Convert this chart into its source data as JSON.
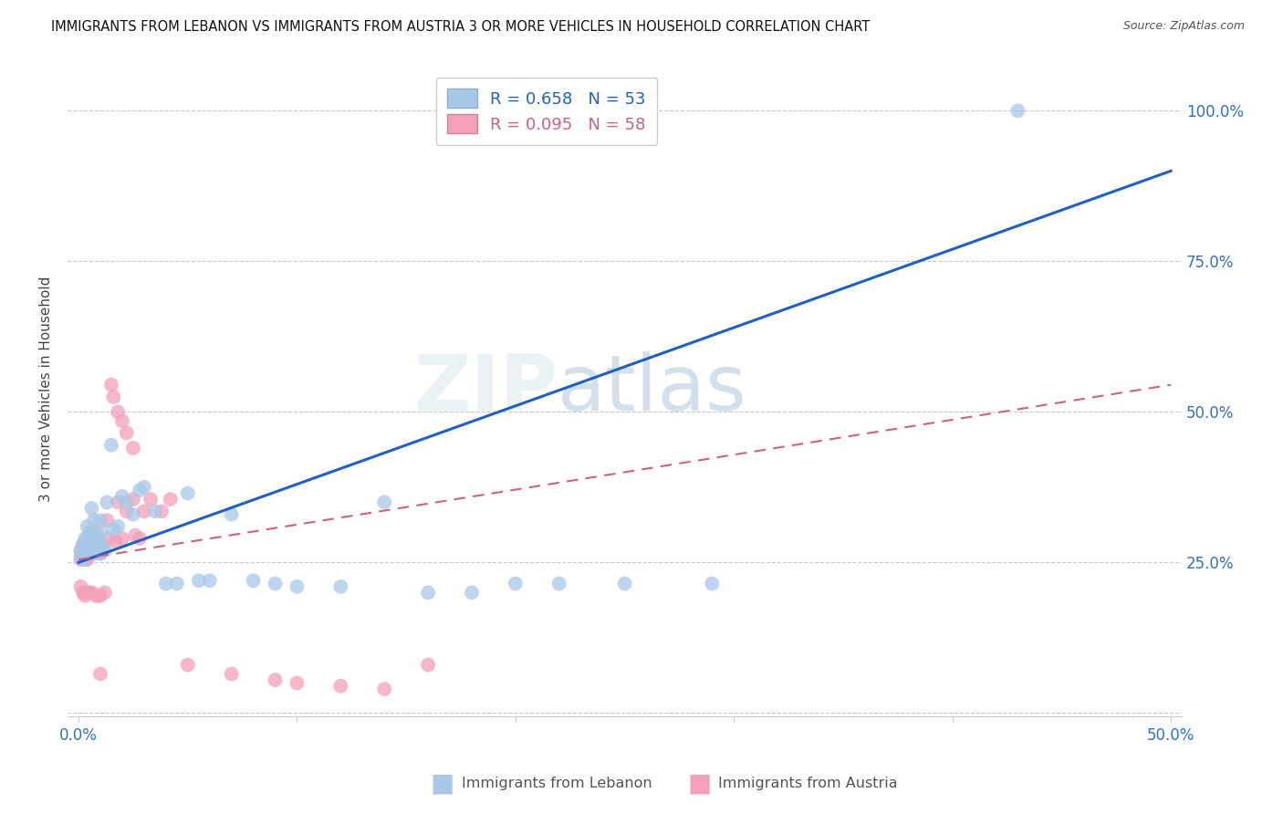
{
  "title": "IMMIGRANTS FROM LEBANON VS IMMIGRANTS FROM AUSTRIA 3 OR MORE VEHICLES IN HOUSEHOLD CORRELATION CHART",
  "source": "Source: ZipAtlas.com",
  "ylabel": "3 or more Vehicles in Household",
  "lebanon_R": 0.658,
  "lebanon_N": 53,
  "austria_R": 0.095,
  "austria_N": 58,
  "lebanon_color": "#a8c8e8",
  "austria_color": "#f4a0b8",
  "lebanon_line_color": "#2060c0",
  "austria_line_color": "#d06080",
  "watermark": "ZIPatlas",
  "xlim": [
    0.0,
    0.5
  ],
  "ylim": [
    0.0,
    1.05
  ],
  "leb_line_x0": 0.0,
  "leb_line_y0": 0.25,
  "leb_line_x1": 0.5,
  "leb_line_y1": 0.9,
  "aut_line_x0": 0.0,
  "aut_line_y0": 0.255,
  "aut_line_x1": 0.5,
  "aut_line_y1": 0.545,
  "lebanon_x": [
    0.001,
    0.001,
    0.002,
    0.002,
    0.002,
    0.003,
    0.003,
    0.003,
    0.004,
    0.004,
    0.004,
    0.005,
    0.005,
    0.006,
    0.006,
    0.007,
    0.007,
    0.008,
    0.008,
    0.009,
    0.01,
    0.01,
    0.011,
    0.012,
    0.013,
    0.015,
    0.016,
    0.018,
    0.02,
    0.022,
    0.025,
    0.028,
    0.03,
    0.035,
    0.04,
    0.045,
    0.05,
    0.055,
    0.06,
    0.07,
    0.08,
    0.09,
    0.1,
    0.12,
    0.14,
    0.16,
    0.18,
    0.2,
    0.22,
    0.25,
    0.29,
    0.43,
    0.01
  ],
  "lebanon_y": [
    0.27,
    0.26,
    0.28,
    0.265,
    0.255,
    0.275,
    0.26,
    0.29,
    0.27,
    0.31,
    0.28,
    0.3,
    0.265,
    0.295,
    0.34,
    0.285,
    0.32,
    0.295,
    0.275,
    0.29,
    0.3,
    0.32,
    0.275,
    0.27,
    0.35,
    0.445,
    0.305,
    0.31,
    0.36,
    0.35,
    0.33,
    0.37,
    0.375,
    0.335,
    0.215,
    0.215,
    0.365,
    0.22,
    0.22,
    0.33,
    0.22,
    0.215,
    0.21,
    0.21,
    0.35,
    0.2,
    0.2,
    0.215,
    0.215,
    0.215,
    0.215,
    1.0,
    0.265
  ],
  "austria_x": [
    0.001,
    0.001,
    0.001,
    0.002,
    0.002,
    0.002,
    0.002,
    0.003,
    0.003,
    0.003,
    0.003,
    0.004,
    0.004,
    0.004,
    0.005,
    0.005,
    0.005,
    0.006,
    0.006,
    0.006,
    0.007,
    0.007,
    0.008,
    0.008,
    0.008,
    0.009,
    0.009,
    0.01,
    0.01,
    0.011,
    0.012,
    0.013,
    0.014,
    0.015,
    0.016,
    0.017,
    0.018,
    0.02,
    0.022,
    0.025,
    0.026,
    0.028,
    0.03,
    0.033,
    0.038,
    0.042,
    0.05,
    0.07,
    0.09,
    0.1,
    0.12,
    0.14,
    0.16,
    0.018,
    0.02,
    0.022,
    0.025,
    0.01
  ],
  "austria_y": [
    0.27,
    0.255,
    0.21,
    0.28,
    0.265,
    0.255,
    0.2,
    0.275,
    0.255,
    0.2,
    0.195,
    0.27,
    0.255,
    0.2,
    0.295,
    0.265,
    0.2,
    0.3,
    0.275,
    0.2,
    0.29,
    0.265,
    0.3,
    0.27,
    0.195,
    0.28,
    0.195,
    0.265,
    0.195,
    0.28,
    0.2,
    0.32,
    0.29,
    0.545,
    0.525,
    0.285,
    0.35,
    0.29,
    0.335,
    0.355,
    0.295,
    0.29,
    0.335,
    0.355,
    0.335,
    0.355,
    0.08,
    0.065,
    0.055,
    0.05,
    0.045,
    0.04,
    0.08,
    0.5,
    0.485,
    0.465,
    0.44,
    0.065
  ]
}
